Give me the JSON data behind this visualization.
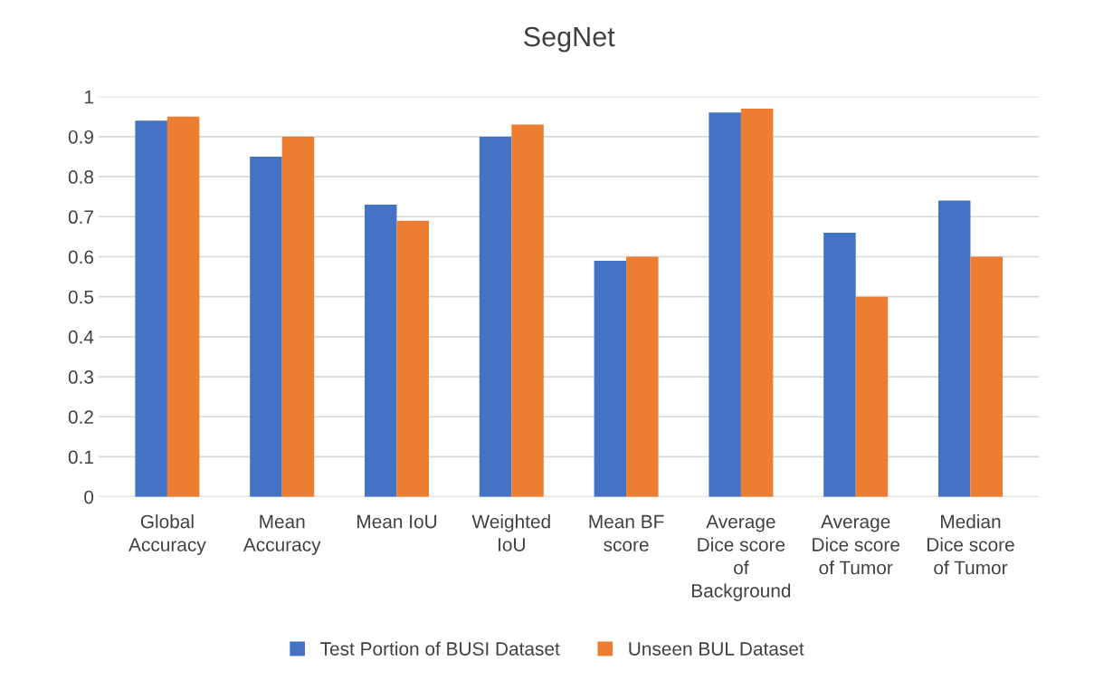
{
  "chart_data": {
    "type": "bar",
    "title": "SegNet",
    "categories": [
      "Global Accuracy",
      "Mean Accuracy",
      "Mean IoU",
      "Weighted IoU",
      "Mean BF score",
      "Average Dice score of Background",
      "Average Dice score of Tumor",
      "Median Dice score of Tumor"
    ],
    "series": [
      {
        "name": "Test Portion of BUSI Dataset",
        "color": "#4472c4",
        "values": [
          0.94,
          0.85,
          0.73,
          0.9,
          0.59,
          0.96,
          0.66,
          0.74
        ]
      },
      {
        "name": "Unseen BUL Dataset",
        "color": "#ed7d31",
        "values": [
          0.95,
          0.9,
          0.69,
          0.93,
          0.6,
          0.97,
          0.5,
          0.6
        ]
      }
    ],
    "ylim": [
      0,
      1
    ],
    "yticks": [
      0,
      0.1,
      0.2,
      0.3,
      0.4,
      0.5,
      0.6,
      0.7,
      0.8,
      0.9,
      1
    ],
    "grid": "y",
    "legend": "bottom"
  }
}
